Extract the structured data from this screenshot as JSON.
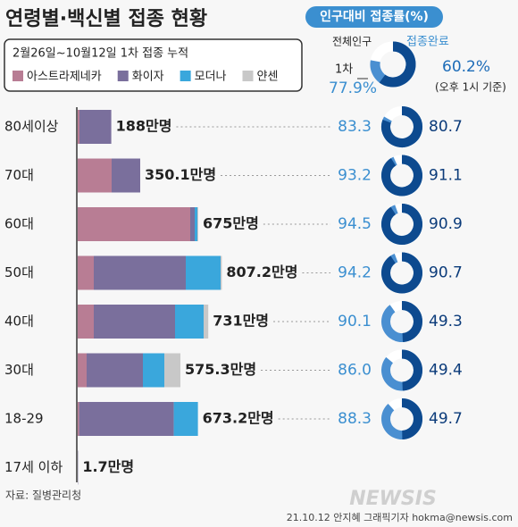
{
  "chart_data": {
    "type": "bar",
    "title": "연령별·백신별 접종 현황",
    "subtitle": "인구대비 접종률(%)",
    "period": "2월26일~10월12일 1차 접종 누적",
    "categories": [
      "80세이상",
      "70대",
      "60대",
      "50대",
      "40대",
      "30대",
      "18-29",
      "17세 이하"
    ],
    "series": [
      {
        "name": "아스트라제네카",
        "color": "#b87d94",
        "values": [
          10,
          190,
          630,
          90,
          90,
          50,
          8,
          0
        ]
      },
      {
        "name": "화이자",
        "color": "#7a6f9c",
        "values": [
          178,
          160,
          25,
          515,
          455,
          315,
          530,
          1.7
        ]
      },
      {
        "name": "모더나",
        "color": "#3aa7dc",
        "values": [
          0,
          0,
          15,
          195,
          160,
          120,
          135,
          0
        ]
      },
      {
        "name": "얀센",
        "color": "#c8c8c8",
        "values": [
          0,
          0,
          5,
          7,
          26,
          90,
          0,
          0
        ]
      }
    ],
    "totals": {
      "values": [
        188,
        350.1,
        675,
        807.2,
        731,
        575.3,
        673.2,
        1.7
      ],
      "value_labels": [
        "188만명",
        "350.1만명",
        "675만명",
        "807.2만명",
        "731만명",
        "575.3만명",
        "673.2만명",
        "1.7만명"
      ]
    },
    "first_dose": {
      "values": [
        83.3,
        93.2,
        94.5,
        94.2,
        90.1,
        86.0,
        88.3
      ],
      "value_labels": [
        "83.3",
        "93.2",
        "94.5",
        "94.2",
        "90.1",
        "86.0",
        "88.3"
      ]
    },
    "completed": {
      "values": [
        80.7,
        91.1,
        90.9,
        90.7,
        49.3,
        49.4,
        49.7
      ],
      "value_labels": [
        "80.7",
        "91.1",
        "90.9",
        "90.7",
        "49.3",
        "49.4",
        "49.7"
      ]
    },
    "overall": {
      "population_label": "전체인구",
      "first_label": "1차",
      "completed_label": "접종완료",
      "first": {
        "value": 77.9,
        "label": "77.9%"
      },
      "completed": {
        "value": 60.2,
        "label": "60.2%"
      },
      "note": "(오후 1시 기준)"
    },
    "source": "자료: 질병관리청",
    "credit": "21.10.12 안지혜 그래픽기자 hokma@newsis.com",
    "logo": "NEWSIS"
  }
}
